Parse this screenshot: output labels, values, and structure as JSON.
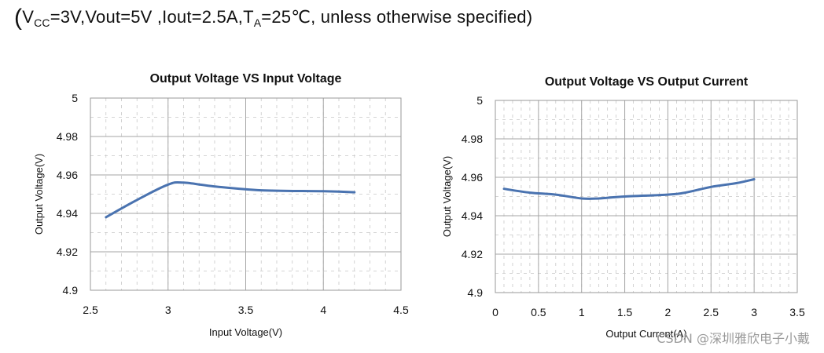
{
  "conditions": {
    "open": "(",
    "v_symbol": "V",
    "v_subscript": "CC",
    "v_rest": "=3V,Vout=5V ,Iout=2.5A,T",
    "t_subscript": "A",
    "t_rest": "=25℃, unless otherwise specified)"
  },
  "chart_data": [
    {
      "type": "line",
      "title": "Output Voltage VS Input Voltage",
      "xlabel": "Input Voltage(V)",
      "ylabel": "Output Voltage(V)",
      "xlim": [
        2.5,
        4.5
      ],
      "ylim": [
        4.9,
        5.0
      ],
      "xticks": [
        2.5,
        3,
        3.5,
        4,
        4.5
      ],
      "xtick_labels": [
        "2.5",
        "3",
        "3.5",
        "4",
        "4.5"
      ],
      "yticks": [
        4.9,
        4.92,
        4.94,
        4.96,
        4.98,
        5.0
      ],
      "ytick_labels": [
        "4.9",
        "4.92",
        "4.94",
        "4.96",
        "4.98",
        "5"
      ],
      "grid": true,
      "series": [
        {
          "name": "Output Voltage",
          "color": "#4a73b0",
          "x": [
            2.6,
            2.8,
            3.0,
            3.1,
            3.3,
            3.6,
            4.0,
            4.2
          ],
          "y": [
            4.938,
            4.947,
            4.955,
            4.956,
            4.954,
            4.952,
            4.9515,
            4.951
          ]
        }
      ]
    },
    {
      "type": "line",
      "title": "Output Voltage VS Output Current",
      "xlabel": "Output Current(A)",
      "ylabel": "Output Voltage(V)",
      "xlim": [
        0,
        3.5
      ],
      "ylim": [
        4.9,
        5.0
      ],
      "xticks": [
        0,
        0.5,
        1,
        1.5,
        2,
        2.5,
        3,
        3.5
      ],
      "xtick_labels": [
        "0",
        "0.5",
        "1",
        "1.5",
        "2",
        "2.5",
        "3",
        "3.5"
      ],
      "yticks": [
        4.9,
        4.92,
        4.94,
        4.96,
        4.98,
        5.0
      ],
      "ytick_labels": [
        "4.9",
        "4.92",
        "4.94",
        "4.96",
        "4.98",
        "5"
      ],
      "grid": true,
      "series": [
        {
          "name": "Output Voltage",
          "color": "#4a73b0",
          "x": [
            0.1,
            0.4,
            0.7,
            1.0,
            1.2,
            1.5,
            2.0,
            2.2,
            2.5,
            2.8,
            3.0
          ],
          "y": [
            4.954,
            4.952,
            4.951,
            4.949,
            4.949,
            4.95,
            4.951,
            4.952,
            4.955,
            4.957,
            4.959
          ]
        }
      ]
    }
  ],
  "watermark": "CSDN @深圳雅欣电子小戴"
}
